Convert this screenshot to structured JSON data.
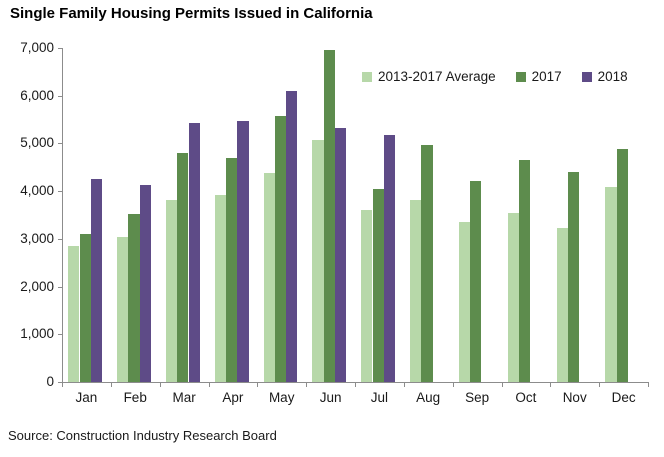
{
  "title": "Single Family Housing Permits Issued in California",
  "source_note": "Source: Construction Industry Research Board",
  "colors": {
    "axis": "#8c8c8c",
    "text": "#1a1a1a",
    "background": "#ffffff",
    "series_avg": "#b7d8a9",
    "series_2017": "#5d8c4d",
    "series_2018": "#5e4b87"
  },
  "chart_data": {
    "type": "bar",
    "title": "Single Family Housing Permits Issued in California",
    "categories": [
      "Jan",
      "Feb",
      "Mar",
      "Apr",
      "May",
      "Jun",
      "Jul",
      "Aug",
      "Sep",
      "Oct",
      "Nov",
      "Dec"
    ],
    "series": [
      {
        "name": "2013-2017 Average",
        "color": "#b7d8a9",
        "values": [
          2860,
          3030,
          3820,
          3910,
          4380,
          5070,
          3600,
          3820,
          3350,
          3540,
          3230,
          4090
        ]
      },
      {
        "name": "2017",
        "color": "#5d8c4d",
        "values": [
          3110,
          3530,
          4800,
          4690,
          5570,
          6960,
          4050,
          4960,
          4220,
          4660,
          4400,
          4890
        ]
      },
      {
        "name": "2018",
        "color": "#5e4b87",
        "values": [
          4250,
          4140,
          5430,
          5480,
          6100,
          5330,
          5170,
          null,
          null,
          null,
          null,
          null
        ]
      }
    ],
    "xlabel": "",
    "ylabel": "",
    "ylim": [
      0,
      7000
    ],
    "ytick_step": 1000,
    "ytick_labels": [
      "0",
      "1,000",
      "2,000",
      "3,000",
      "4,000",
      "5,000",
      "6,000",
      "7,000"
    ],
    "grid": false,
    "legend_position": "top-right",
    "source_note": "Source: Construction Industry Research Board"
  }
}
